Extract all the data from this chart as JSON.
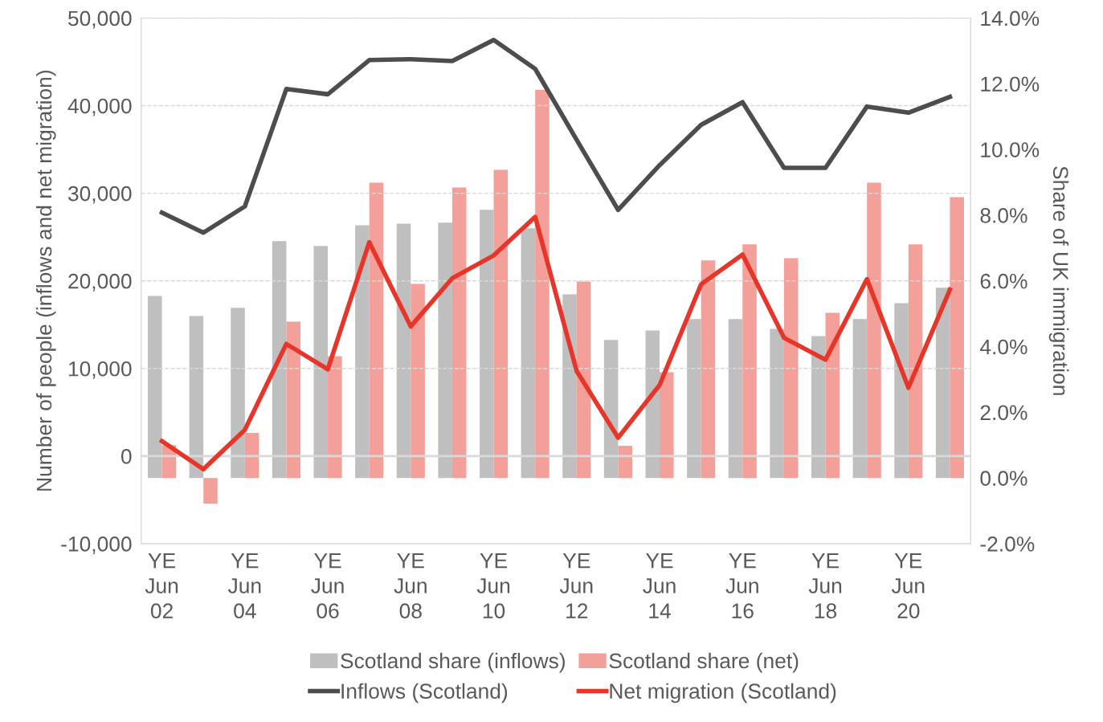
{
  "chart_data": {
    "type": "bar",
    "ylabel": "Number of people (inflows and net migration)",
    "y2label": "Share of UK immigration",
    "categories": [
      "YE\nJun\n02",
      null,
      "YE\nJun\n04",
      null,
      "YE\nJun\n06",
      null,
      "YE\nJun\n08",
      null,
      "YE\nJun\n10",
      null,
      "YE\nJun\n12",
      null,
      "YE\nJun\n14",
      null,
      "YE\nJun\n16",
      null,
      "YE\nJun\n18",
      null,
      "YE\nJun\n20",
      null
    ],
    "series": [
      {
        "name": "Scotland share (inflows)",
        "axis": "y2",
        "color": "#bfbfbf",
        "values": [
          5.54,
          4.93,
          5.18,
          7.21,
          7.06,
          7.69,
          7.74,
          7.77,
          8.16,
          7.6,
          5.59,
          4.2,
          4.49,
          4.84,
          4.84,
          4.54,
          4.32,
          4.84,
          5.32,
          5.79
        ]
      },
      {
        "name": "Scotland share (net)",
        "axis": "y2",
        "color": "#f4a09a",
        "values": [
          1.0,
          -0.78,
          1.37,
          4.76,
          3.71,
          8.99,
          5.91,
          8.84,
          9.38,
          11.82,
          5.98,
          0.98,
          3.22,
          6.62,
          7.11,
          6.69,
          5.03,
          8.99,
          7.11,
          8.55
        ]
      },
      {
        "name": "Inflows (Scotland)",
        "type": "line",
        "color": "#4d4d4d",
        "values": [
          27800,
          25500,
          28500,
          41900,
          41300,
          45200,
          45300,
          45100,
          47500,
          44200,
          36100,
          28100,
          33200,
          37800,
          40400,
          32900,
          32900,
          39900,
          39200,
          41000
        ]
      },
      {
        "name": "Net migration (Scotland)",
        "type": "line",
        "color": "#e8352a",
        "values": [
          1700,
          -1500,
          3000,
          12800,
          9900,
          24400,
          14800,
          20300,
          22900,
          27300,
          9700,
          2100,
          8100,
          19600,
          23000,
          13500,
          11000,
          20200,
          7800,
          19000
        ]
      }
    ],
    "ylim": [
      -10000,
      50000
    ],
    "yticks": [
      {
        "value": -10000,
        "label": "-10,000"
      },
      {
        "value": 0,
        "label": "0"
      },
      {
        "value": 10000,
        "label": "10,000"
      },
      {
        "value": 20000,
        "label": "20,000"
      },
      {
        "value": 30000,
        "label": "30,000"
      },
      {
        "value": 40000,
        "label": "40,000"
      },
      {
        "value": 50000,
        "label": "50,000"
      }
    ],
    "y2lim": [
      -2,
      14
    ],
    "y2ticks": [
      {
        "value": -2,
        "label": "-2.0%"
      },
      {
        "value": 0,
        "label": "0.0%"
      },
      {
        "value": 2,
        "label": "2.0%"
      },
      {
        "value": 4,
        "label": "4.0%"
      },
      {
        "value": 6,
        "label": "6.0%"
      },
      {
        "value": 8,
        "label": "8.0%"
      },
      {
        "value": 10,
        "label": "10.0%"
      },
      {
        "value": 12,
        "label": "12.0%"
      },
      {
        "value": 14,
        "label": "14.0%"
      }
    ],
    "grid": "y",
    "legend": "bottom",
    "marker": "none",
    "line_style": "solid"
  }
}
